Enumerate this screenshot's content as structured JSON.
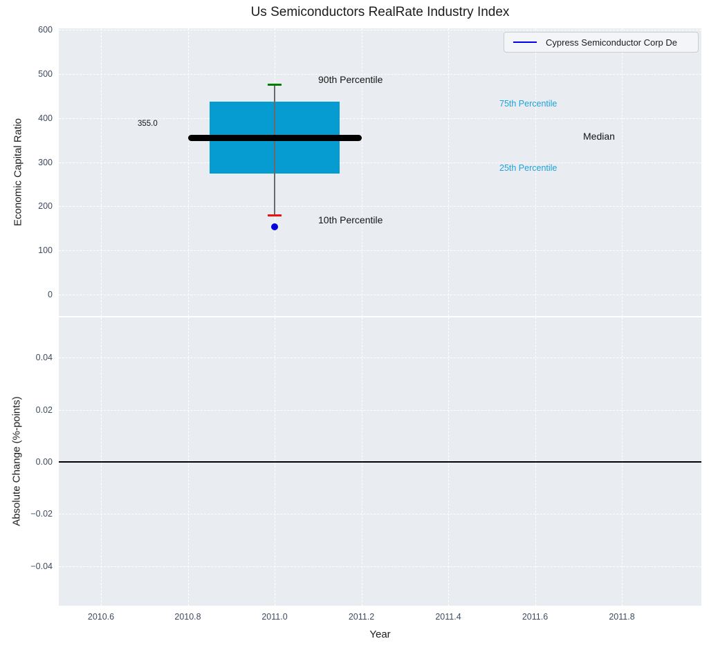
{
  "figure": {
    "title": "Us Semiconductors RealRate Industry Index"
  },
  "legend": {
    "series_label": "Cypress Semiconductor Corp De",
    "line_color": "#0000ee",
    "position": "upper right"
  },
  "top_axes": {
    "ylabel": "Economic Capital Ratio",
    "ytick_labels": [
      "600",
      "500",
      "400",
      "300",
      "200",
      "100",
      "0"
    ],
    "annotations": {
      "p90": "90th Percentile",
      "p75": "75th Percentile",
      "median": "Median",
      "p25": "25th Percentile",
      "p10": "10th Percentile",
      "median_value": "355.0"
    }
  },
  "bottom_axes": {
    "ylabel": "Absolute Change (%-points)",
    "xlabel": "Year",
    "ytick_labels": [
      "0.04",
      "0.02",
      "0.00",
      "−0.02",
      "−0.04"
    ],
    "xtick_labels": [
      "2010.6",
      "2010.8",
      "2011.0",
      "2011.2",
      "2011.4",
      "2011.6",
      "2011.8"
    ]
  },
  "chart_data": [
    {
      "type": "boxplot",
      "title": "Us Semiconductors RealRate Industry Index",
      "ylabel": "Economic Capital Ratio",
      "ylim": [
        -40,
        610
      ],
      "ytick_values": [
        600,
        500,
        400,
        300,
        200,
        100,
        0
      ],
      "xtick_values": [
        2010.6,
        2010.8,
        2011.0,
        2011.2,
        2011.4,
        2011.6,
        2011.8
      ],
      "grid": true,
      "legend_position": "upper right",
      "box": {
        "x_center": 2011.0,
        "whisker_high_90th": 475,
        "q3_75th": 437,
        "median": 355,
        "q1_25th": 274,
        "whisker_low_10th": 180,
        "box_x_span": [
          2010.85,
          2011.15
        ],
        "median_x_span": [
          2010.8,
          2011.2
        ],
        "cap_half_width_years": 0.016
      },
      "median_data_label": "355.0",
      "company_point": {
        "name": "Cypress Semiconductor Corp De",
        "x": 2011.0,
        "value": 153
      },
      "colors": {
        "box_fill": "#069cd1",
        "median_line": "#000000",
        "whisker": "#6a6a6a",
        "cap_high": "#008000",
        "cap_low": "#ee1111",
        "percentile_label": "#1ea2d9",
        "company_point": "#0000dd",
        "axes_background": "#e9edf1"
      }
    },
    {
      "type": "line",
      "ylabel": "Absolute Change (%-points)",
      "xlabel": "Year",
      "ylim": [
        -0.0555,
        0.0555
      ],
      "xlim": [
        2010.5,
        2011.99
      ],
      "ytick_values": [
        0.04,
        0.02,
        0.0,
        -0.02,
        -0.04
      ],
      "xtick_values": [
        2010.6,
        2010.8,
        2011.0,
        2011.2,
        2011.4,
        2011.6,
        2011.8
      ],
      "zero_line_y": 0.0,
      "grid": true,
      "series": []
    }
  ]
}
